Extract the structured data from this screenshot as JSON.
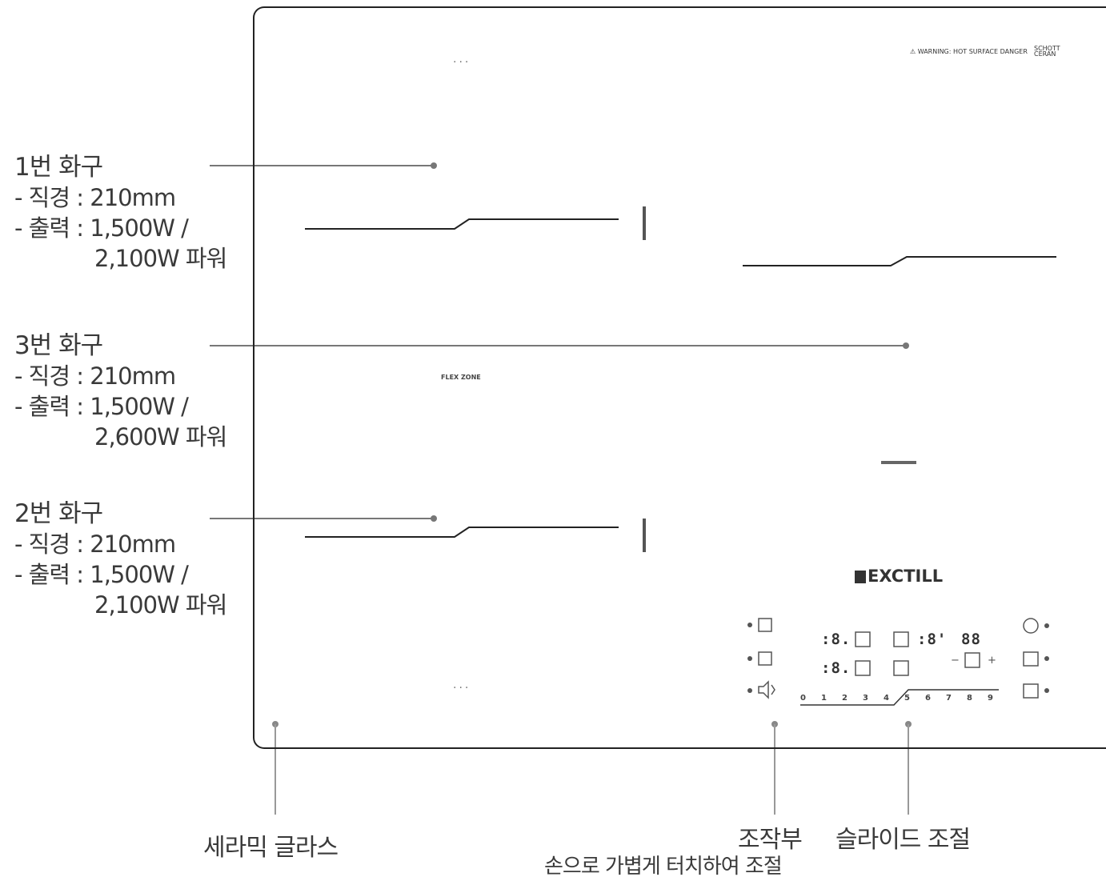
{
  "callouts": [
    {
      "title": "1번 화구",
      "diameter": "- 직경 : 210mm",
      "power": "- 출력 : 1,500W /",
      "power2": "2,100W 파워"
    },
    {
      "title": "3번 화구",
      "diameter": "- 직경 : 210mm",
      "power": "- 출력 : 1,500W /",
      "power2": "2,600W 파워"
    },
    {
      "title": "2번 화구",
      "diameter": "- 직경 : 210mm",
      "power": "- 출력 : 1,500W /",
      "power2": "2,100W 파워"
    }
  ],
  "bottom_labels": {
    "glass": "세라믹 글라스",
    "control": "조작부",
    "control_sub": "손으로 가볍게 터치하여 조절",
    "slide": "슬라이드 조절"
  },
  "panel": {
    "brand": "EXCTILL",
    "flex_zone": "FLEX ZONE",
    "warning": "⚠ WARNING: HOT SURFACE DANGER",
    "schott_top": "SCHOTT",
    "schott_bottom": "CERAN",
    "lcd_zone1": ":8.",
    "lcd_zone2": ":8.",
    "lcd_zone3": ":8'",
    "lcd_timer": "88",
    "timer_minus": "−",
    "timer_plus": "+",
    "slider_ticks": [
      "0",
      "1",
      "2",
      "3",
      "4",
      "5",
      "6",
      "7",
      "8",
      "9"
    ]
  },
  "icons": [
    "pause-icon",
    "zone-select-icon",
    "sound-icon",
    "power-icon",
    "lock-icon",
    "boost-icon",
    "timer-icon",
    "flex-icon",
    "pan-icon",
    "p-icon"
  ]
}
